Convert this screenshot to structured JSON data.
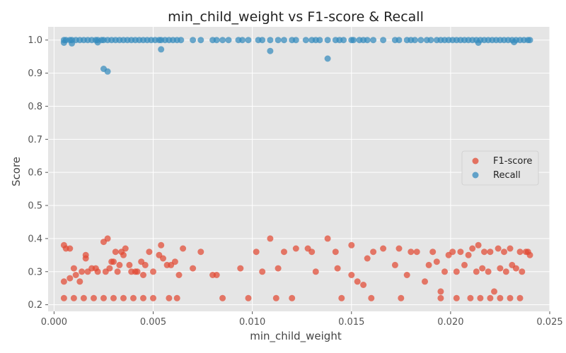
{
  "chart_data": {
    "type": "scatter",
    "title": "min_child_weight vs F1-score & Recall",
    "xlabel": "min_child_weight",
    "ylabel": "Score",
    "xlim": [
      -0.0003,
      0.025
    ],
    "ylim": [
      0.18,
      1.04
    ],
    "x_ticks": [
      0.0,
      0.005,
      0.01,
      0.015,
      0.02,
      0.025
    ],
    "x_tick_labels": [
      "0.000",
      "0.005",
      "0.010",
      "0.015",
      "0.020",
      "0.025"
    ],
    "y_ticks": [
      0.2,
      0.3,
      0.4,
      0.5,
      0.6,
      0.7,
      0.8,
      0.9,
      1.0
    ],
    "y_tick_labels": [
      "0.2",
      "0.3",
      "0.4",
      "0.5",
      "0.6",
      "0.7",
      "0.8",
      "0.9",
      "1.0"
    ],
    "grid": true,
    "legend_position": "center-right",
    "series": [
      {
        "name": "F1-score",
        "color": "#E24A33",
        "x": [
          0.0005,
          0.0005,
          0.0006,
          0.0008,
          0.0008,
          0.001,
          0.0011,
          0.0013,
          0.0014,
          0.0016,
          0.0016,
          0.0017,
          0.0019,
          0.0021,
          0.0022,
          0.0025,
          0.0026,
          0.0027,
          0.0028,
          0.0029,
          0.003,
          0.0031,
          0.0032,
          0.0033,
          0.0034,
          0.0035,
          0.0036,
          0.0038,
          0.0039,
          0.0041,
          0.0042,
          0.0044,
          0.0045,
          0.0046,
          0.0048,
          0.005,
          0.0053,
          0.0054,
          0.0055,
          0.0057,
          0.0059,
          0.0061,
          0.0063,
          0.0065,
          0.007,
          0.0074,
          0.008,
          0.0082,
          0.0094,
          0.0102,
          0.0105,
          0.0109,
          0.0113,
          0.0116,
          0.0122,
          0.0128,
          0.013,
          0.0132,
          0.0138,
          0.0142,
          0.0143,
          0.015,
          0.015,
          0.0153,
          0.0156,
          0.0158,
          0.0161,
          0.0166,
          0.0172,
          0.0174,
          0.0178,
          0.018,
          0.0183,
          0.0187,
          0.0189,
          0.0191,
          0.0193,
          0.0195,
          0.0197,
          0.0199,
          0.0201,
          0.0203,
          0.0205,
          0.0207,
          0.0209,
          0.0211,
          0.0213,
          0.0214,
          0.0216,
          0.0217,
          0.0219,
          0.022,
          0.0222,
          0.0224,
          0.0225,
          0.0227,
          0.0228,
          0.023,
          0.0231,
          0.0233,
          0.0235,
          0.0236,
          0.0238,
          0.0239,
          0.024,
          0.0005,
          0.001,
          0.0015,
          0.002,
          0.0025,
          0.003,
          0.0035,
          0.004,
          0.0045,
          0.005,
          0.0058,
          0.0062,
          0.0085,
          0.0098,
          0.0112,
          0.012,
          0.0145,
          0.016,
          0.0175,
          0.0195,
          0.0203,
          0.021,
          0.0215,
          0.022,
          0.0225,
          0.023,
          0.0235
        ],
        "y": [
          0.38,
          0.27,
          0.37,
          0.28,
          0.37,
          0.31,
          0.29,
          0.27,
          0.3,
          0.34,
          0.35,
          0.3,
          0.31,
          0.31,
          0.3,
          0.39,
          0.3,
          0.4,
          0.31,
          0.33,
          0.33,
          0.36,
          0.3,
          0.32,
          0.36,
          0.35,
          0.37,
          0.32,
          0.3,
          0.3,
          0.3,
          0.33,
          0.29,
          0.32,
          0.36,
          0.3,
          0.35,
          0.38,
          0.34,
          0.32,
          0.32,
          0.33,
          0.29,
          0.37,
          0.31,
          0.36,
          0.29,
          0.29,
          0.31,
          0.36,
          0.3,
          0.4,
          0.31,
          0.36,
          0.37,
          0.37,
          0.36,
          0.3,
          0.4,
          0.36,
          0.31,
          0.38,
          0.29,
          0.27,
          0.26,
          0.34,
          0.36,
          0.37,
          0.32,
          0.37,
          0.29,
          0.36,
          0.36,
          0.27,
          0.32,
          0.36,
          0.33,
          0.24,
          0.3,
          0.35,
          0.36,
          0.3,
          0.36,
          0.32,
          0.35,
          0.37,
          0.3,
          0.38,
          0.31,
          0.36,
          0.3,
          0.36,
          0.24,
          0.37,
          0.31,
          0.36,
          0.3,
          0.37,
          0.32,
          0.31,
          0.36,
          0.3,
          0.36,
          0.36,
          0.35,
          0.22,
          0.22,
          0.22,
          0.22,
          0.22,
          0.22,
          0.22,
          0.22,
          0.22,
          0.22,
          0.22,
          0.22,
          0.22,
          0.22,
          0.22,
          0.22,
          0.22,
          0.22,
          0.22,
          0.22,
          0.22,
          0.22,
          0.22,
          0.22,
          0.22,
          0.22,
          0.22
        ]
      },
      {
        "name": "Recall",
        "color": "#348ABD",
        "x": [
          0.0005,
          0.0006,
          0.0008,
          0.0009,
          0.0011,
          0.0013,
          0.0015,
          0.0017,
          0.0019,
          0.0021,
          0.0022,
          0.0024,
          0.0025,
          0.0027,
          0.0029,
          0.0031,
          0.0033,
          0.0035,
          0.0037,
          0.0039,
          0.0041,
          0.0043,
          0.0045,
          0.0047,
          0.0049,
          0.0051,
          0.0053,
          0.0054,
          0.0056,
          0.0058,
          0.006,
          0.0062,
          0.0064,
          0.007,
          0.0074,
          0.008,
          0.0082,
          0.0085,
          0.0088,
          0.0093,
          0.0095,
          0.0098,
          0.0103,
          0.0105,
          0.0109,
          0.0113,
          0.0116,
          0.012,
          0.0122,
          0.0127,
          0.013,
          0.0132,
          0.0134,
          0.0138,
          0.0142,
          0.0144,
          0.0146,
          0.015,
          0.0151,
          0.0154,
          0.0156,
          0.0158,
          0.0161,
          0.0166,
          0.0172,
          0.0174,
          0.0178,
          0.018,
          0.0182,
          0.0185,
          0.0188,
          0.019,
          0.0193,
          0.0195,
          0.0197,
          0.0199,
          0.0201,
          0.0203,
          0.0205,
          0.0207,
          0.0209,
          0.0211,
          0.0213,
          0.0215,
          0.0217,
          0.0219,
          0.0221,
          0.0223,
          0.0225,
          0.0227,
          0.0229,
          0.0231,
          0.0233,
          0.0235,
          0.0237,
          0.0239,
          0.024,
          0.0025,
          0.0027,
          0.0054,
          0.0109,
          0.0138,
          0.0005,
          0.0009,
          0.0022,
          0.0214,
          0.0232
        ],
        "y": [
          1.0,
          1.0,
          1.0,
          1.0,
          1.0,
          1.0,
          1.0,
          1.0,
          1.0,
          1.0,
          1.0,
          1.0,
          1.0,
          1.0,
          1.0,
          1.0,
          1.0,
          1.0,
          1.0,
          1.0,
          1.0,
          1.0,
          1.0,
          1.0,
          1.0,
          1.0,
          1.0,
          1.0,
          1.0,
          1.0,
          1.0,
          1.0,
          1.0,
          1.0,
          1.0,
          1.0,
          1.0,
          1.0,
          1.0,
          1.0,
          1.0,
          1.0,
          1.0,
          1.0,
          1.0,
          1.0,
          1.0,
          1.0,
          1.0,
          1.0,
          1.0,
          1.0,
          1.0,
          1.0,
          1.0,
          1.0,
          1.0,
          1.0,
          1.0,
          1.0,
          1.0,
          1.0,
          1.0,
          1.0,
          1.0,
          1.0,
          1.0,
          1.0,
          1.0,
          1.0,
          1.0,
          1.0,
          1.0,
          1.0,
          1.0,
          1.0,
          1.0,
          1.0,
          1.0,
          1.0,
          1.0,
          1.0,
          1.0,
          1.0,
          1.0,
          1.0,
          1.0,
          1.0,
          1.0,
          1.0,
          1.0,
          1.0,
          1.0,
          1.0,
          1.0,
          1.0,
          1.0,
          0.913,
          0.905,
          0.972,
          0.967,
          0.944,
          0.992,
          0.99,
          0.993,
          0.992,
          0.994
        ]
      }
    ]
  }
}
